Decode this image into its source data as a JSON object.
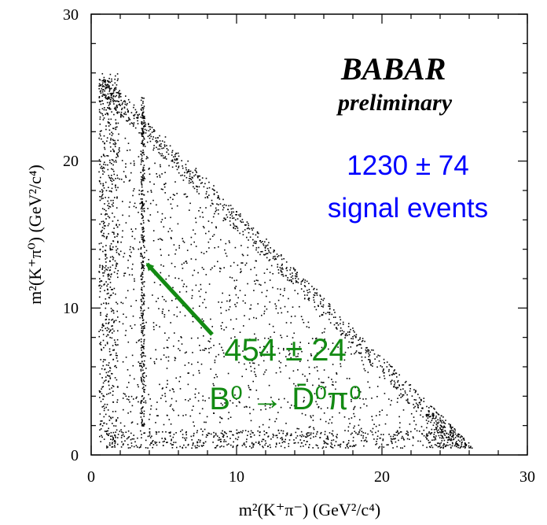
{
  "chart_data": {
    "type": "scatter",
    "title": "",
    "xlabel": "m²(K⁺π⁻)  (GeV²/c⁴)",
    "ylabel": "m²(K⁺π⁰)  (GeV²/c⁴)",
    "xlim": [
      0,
      30
    ],
    "ylim": [
      0,
      30
    ],
    "x_ticks": [
      "0",
      "10",
      "20",
      "30"
    ],
    "y_ticks": [
      "0",
      "10",
      "20",
      "30"
    ],
    "grid": false,
    "dalitz_boundary_corners": [
      [
        0.5,
        26.0
      ],
      [
        26.3,
        0.5
      ],
      [
        0.5,
        0.5
      ]
    ],
    "band_x": 3.5,
    "band_y_range": [
      2.0,
      24.5
    ],
    "annotations": {
      "experiment": "BABAR",
      "status": "preliminary",
      "signal_count": "1230 ± 74",
      "signal_label": "signal events",
      "band_count": "454 ± 24",
      "band_decay": "B⁰ → D̄⁰π⁰",
      "arrow_target": [
        3.5,
        13.0
      ]
    },
    "colors": {
      "points": "#000000",
      "signal_text": "#0000ff",
      "band_text": "#138a13"
    }
  }
}
